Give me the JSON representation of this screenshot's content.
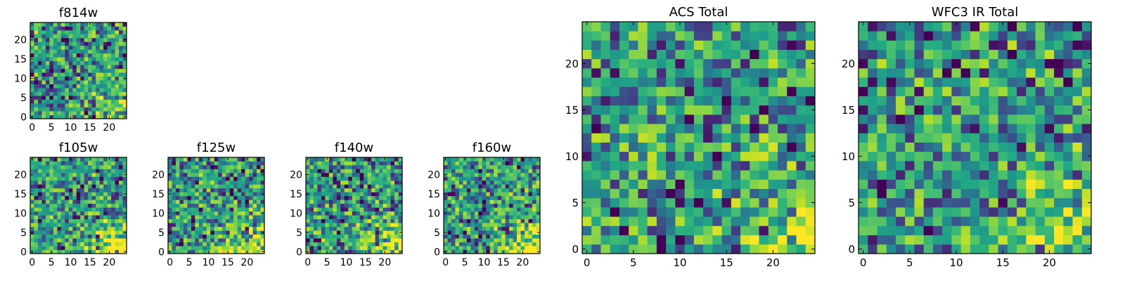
{
  "chart_data": [
    {
      "type": "heatmap",
      "title": "f814w",
      "x_ticks": [
        "0",
        "5",
        "10",
        "15",
        "20"
      ],
      "y_ticks": [
        "0",
        "5",
        "10",
        "15",
        "20"
      ],
      "xlim": [
        -0.5,
        24.5
      ],
      "ylim": [
        -0.5,
        24.5
      ],
      "grid_size": [
        25,
        25
      ],
      "colormap": "viridis",
      "clim": [
        0,
        1
      ],
      "seed": 11,
      "corner_bright": 0.25
    },
    {
      "type": "heatmap",
      "title": "f105w",
      "x_ticks": [
        "0",
        "5",
        "10",
        "15",
        "20"
      ],
      "y_ticks": [
        "0",
        "5",
        "10",
        "15",
        "20"
      ],
      "xlim": [
        -0.5,
        24.5
      ],
      "ylim": [
        -0.5,
        24.5
      ],
      "grid_size": [
        25,
        25
      ],
      "colormap": "viridis",
      "clim": [
        0,
        1
      ],
      "seed": 23,
      "corner_bright": 0.4
    },
    {
      "type": "heatmap",
      "title": "f125w",
      "x_ticks": [
        "0",
        "5",
        "10",
        "15",
        "20"
      ],
      "y_ticks": [
        "0",
        "5",
        "10",
        "15",
        "20"
      ],
      "xlim": [
        -0.5,
        24.5
      ],
      "ylim": [
        -0.5,
        24.5
      ],
      "grid_size": [
        25,
        25
      ],
      "colormap": "viridis",
      "clim": [
        0,
        1
      ],
      "seed": 37,
      "corner_bright": 0.35
    },
    {
      "type": "heatmap",
      "title": "f140w",
      "x_ticks": [
        "0",
        "5",
        "10",
        "15",
        "20"
      ],
      "y_ticks": [
        "0",
        "5",
        "10",
        "15",
        "20"
      ],
      "xlim": [
        -0.5,
        24.5
      ],
      "ylim": [
        -0.5,
        24.5
      ],
      "grid_size": [
        25,
        25
      ],
      "colormap": "viridis",
      "clim": [
        0,
        1
      ],
      "seed": 41,
      "corner_bright": 0.35
    },
    {
      "type": "heatmap",
      "title": "f160w",
      "x_ticks": [
        "0",
        "5",
        "10",
        "15",
        "20"
      ],
      "y_ticks": [
        "0",
        "5",
        "10",
        "15",
        "20"
      ],
      "xlim": [
        -0.5,
        24.5
      ],
      "ylim": [
        -0.5,
        24.5
      ],
      "grid_size": [
        25,
        25
      ],
      "colormap": "viridis",
      "clim": [
        0,
        1
      ],
      "seed": 53,
      "corner_bright": 0.45
    },
    {
      "type": "heatmap",
      "title": "ACS Total",
      "x_ticks": [
        "0",
        "5",
        "10",
        "15",
        "20"
      ],
      "y_ticks": [
        "0",
        "5",
        "10",
        "15",
        "20"
      ],
      "xlim": [
        -0.5,
        24.5
      ],
      "ylim": [
        -0.5,
        24.5
      ],
      "grid_size": [
        25,
        25
      ],
      "colormap": "viridis",
      "clim": [
        0,
        1
      ],
      "seed": 67,
      "corner_bright": 0.3
    },
    {
      "type": "heatmap",
      "title": "WFC3 IR Total",
      "x_ticks": [
        "0",
        "5",
        "10",
        "15",
        "20"
      ],
      "y_ticks": [
        "0",
        "5",
        "10",
        "15",
        "20"
      ],
      "xlim": [
        -0.5,
        24.5
      ],
      "ylim": [
        -0.5,
        24.5
      ],
      "grid_size": [
        25,
        25
      ],
      "colormap": "viridis",
      "clim": [
        0,
        1
      ],
      "seed": 79,
      "corner_bright": 0.3
    }
  ]
}
